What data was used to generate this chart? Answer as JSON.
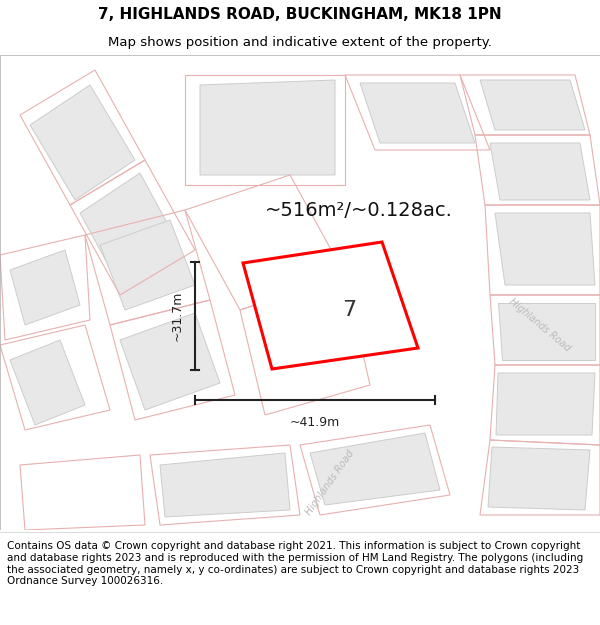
{
  "title": "7, HIGHLANDS ROAD, BUCKINGHAM, MK18 1PN",
  "subtitle": "Map shows position and indicative extent of the property.",
  "footer": "Contains OS data © Crown copyright and database right 2021. This information is subject to Crown copyright and database rights 2023 and is reproduced with the permission of HM Land Registry. The polygons (including the associated geometry, namely x, y co-ordinates) are subject to Crown copyright and database rights 2023 Ordnance Survey 100026316.",
  "area_label": "~516m²/~0.128ac.",
  "width_label": "~41.9m",
  "height_label": "~31.7m",
  "property_number": "7",
  "map_bg": "#ffffff",
  "building_fill": "#e8e8e8",
  "building_outline": "#cccccc",
  "plot_line_color": "#e8b0b0",
  "property_color": "#ff0000",
  "dimension_color": "#222222",
  "road_label_color": "#bbbbbb",
  "title_fontsize": 11,
  "subtitle_fontsize": 9.5,
  "footer_fontsize": 7.5,
  "area_fontsize": 14,
  "dim_fontsize": 9,
  "number_fontsize": 16
}
